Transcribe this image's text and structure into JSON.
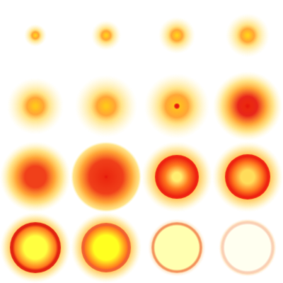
{
  "sprite_sheet": {
    "columns": 4,
    "rows": 4,
    "frames": [
      {
        "frame": 1,
        "kind": "glow",
        "hot": 0.05,
        "spread": 0.32,
        "core": 0.0,
        "peak": "#ffd21a"
      },
      {
        "frame": 2,
        "kind": "glow",
        "hot": 0.05,
        "spread": 0.42,
        "core": 0.0,
        "peak": "#ffd21a"
      },
      {
        "frame": 3,
        "kind": "glow",
        "hot": 0.05,
        "spread": 0.52,
        "core": 0.0,
        "peak": "#ffd21a"
      },
      {
        "frame": 4,
        "kind": "glow",
        "hot": 0.05,
        "spread": 0.62,
        "core": 0.0,
        "peak": "#ffd21a"
      },
      {
        "frame": 5,
        "kind": "glow",
        "hot": 0.05,
        "spread": 0.8,
        "core": 0.0,
        "peak": "#ffc81a"
      },
      {
        "frame": 6,
        "kind": "glow",
        "hot": 0.05,
        "spread": 0.88,
        "core": 0.0,
        "peak": "#ffc81a"
      },
      {
        "frame": 7,
        "kind": "glow",
        "hot": 0.1,
        "spread": 0.92,
        "core": 0.06,
        "peak": "#ffc020"
      },
      {
        "frame": 8,
        "kind": "glow",
        "hot": 0.28,
        "spread": 0.98,
        "core": 0.1,
        "peak": "#e8261a"
      },
      {
        "frame": 9,
        "kind": "glow",
        "hot": 0.3,
        "spread": 1.0,
        "core": 0.0,
        "peak": "#f0401a"
      },
      {
        "frame": 10,
        "kind": "glow",
        "hot": 0.48,
        "spread": 1.0,
        "core": 0.06,
        "peak": "#f0401a"
      },
      {
        "frame": 11,
        "kind": "ring",
        "inner": 0.2,
        "ring": 0.62,
        "glow": 1.0,
        "centerColor": "#ffee70",
        "ringColor": "#ee2010"
      },
      {
        "frame": 12,
        "kind": "ring",
        "inner": 0.3,
        "ring": 0.64,
        "glow": 1.0,
        "centerColor": "#ffdc5a",
        "ringColor": "#ee2010"
      },
      {
        "frame": 13,
        "kind": "ring",
        "inner": 0.45,
        "ring": 0.72,
        "glow": 1.0,
        "centerColor": "#ffff40",
        "ringColor": "#e02010"
      },
      {
        "frame": 14,
        "kind": "ring",
        "inner": 0.5,
        "ring": 0.7,
        "glow": 1.0,
        "centerColor": "#ffff20",
        "ringColor": "#f06030"
      },
      {
        "frame": 15,
        "kind": "bubble",
        "inner": 0.65,
        "ring": 0.72,
        "glow": 0.82,
        "centerColor": "#ffffb0",
        "ringColor": "#f07a40"
      },
      {
        "frame": 16,
        "kind": "bubble",
        "inner": 0.68,
        "ring": 0.75,
        "glow": 0.82,
        "centerColor": "#fffff0",
        "ringColor": "#f8c8b0"
      }
    ]
  }
}
